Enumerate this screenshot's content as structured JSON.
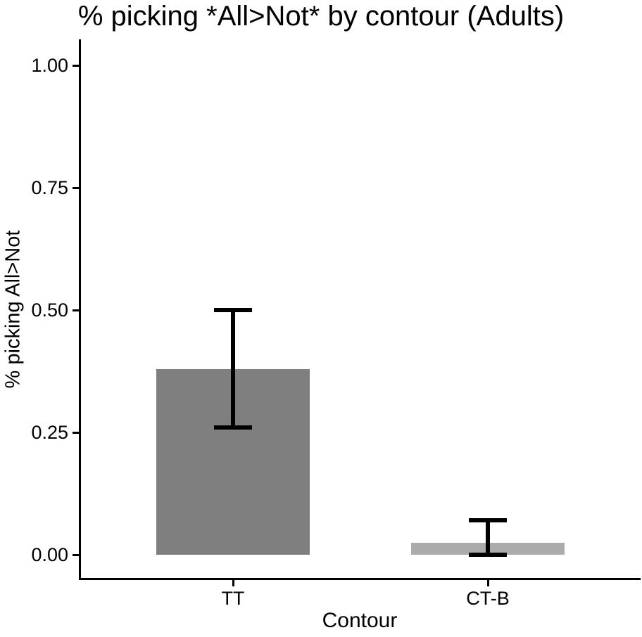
{
  "chart_data": {
    "type": "bar",
    "title": "% picking *All>Not* by contour (Adults)",
    "xlabel": "Contour",
    "ylabel": "% picking All>Not",
    "categories": [
      "TT",
      "CT-B"
    ],
    "values": [
      0.38,
      0.025
    ],
    "error_bars": [
      {
        "low": 0.26,
        "high": 0.5
      },
      {
        "low": 0.0,
        "high": 0.07
      }
    ],
    "bar_colors": [
      "#7f7f7f",
      "#ababab"
    ],
    "error_bar_color": "#000000",
    "axis_color": "#000000",
    "y_ticks": [
      0.0,
      0.25,
      0.5,
      0.75,
      1.0
    ],
    "y_tick_labels": [
      "0.00",
      "0.25",
      "0.50",
      "0.75",
      "1.00"
    ],
    "ylim": [
      0,
      1.05
    ],
    "grid": false,
    "legend": false,
    "background": "#ffffff"
  }
}
